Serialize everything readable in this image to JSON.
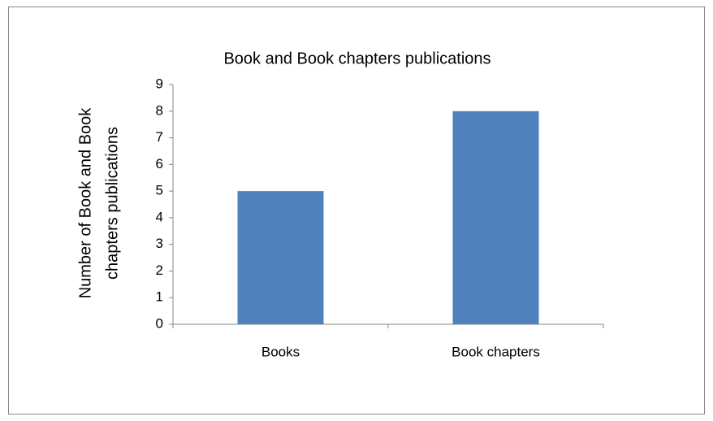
{
  "chart_data": {
    "type": "bar",
    "title": "Book and Book chapters publications",
    "ylabel": [
      "Number of Book and Book",
      "chapters publications"
    ],
    "categories": [
      "Books",
      "Book chapters"
    ],
    "values": [
      5,
      8
    ],
    "color": "#4f81bd",
    "ylim": [
      0,
      9
    ],
    "yticks": [
      0,
      1,
      2,
      3,
      4,
      5,
      6,
      7,
      8,
      9
    ],
    "grid": false
  }
}
